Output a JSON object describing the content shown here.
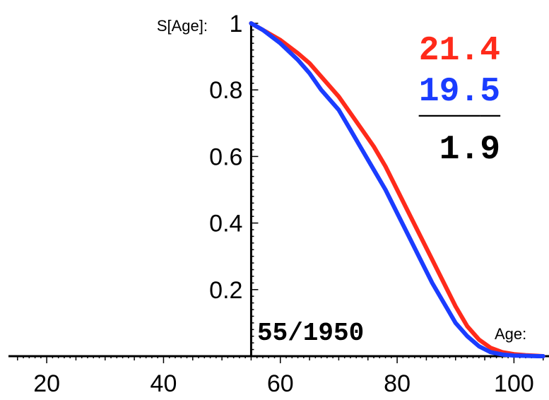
{
  "chart_data": {
    "type": "line",
    "xlabel": "Age:",
    "ylabel": "S[Age]:",
    "xlim": [
      12,
      106
    ],
    "ylim": [
      0,
      1
    ],
    "x_ticks": [
      20,
      40,
      60,
      80,
      100
    ],
    "y_ticks": [
      0.2,
      0.4,
      0.6,
      0.8,
      1
    ],
    "y_tick_labels": [
      "0.2",
      "0.4",
      "0.6",
      "0.8",
      "1"
    ],
    "cohort_label": "55/1950",
    "series": [
      {
        "color": "#ff2a1a",
        "x": [
          55,
          57,
          60,
          63,
          65,
          67,
          70,
          72,
          74,
          76,
          78,
          80,
          82,
          84,
          86,
          88,
          90,
          92,
          94,
          96,
          98,
          100,
          102,
          104,
          105
        ],
        "y": [
          1.0,
          0.98,
          0.95,
          0.91,
          0.88,
          0.84,
          0.78,
          0.73,
          0.68,
          0.63,
          0.57,
          0.5,
          0.43,
          0.36,
          0.29,
          0.22,
          0.15,
          0.09,
          0.05,
          0.025,
          0.012,
          0.006,
          0.003,
          0.001,
          0.0
        ]
      },
      {
        "color": "#1a3cff",
        "x": [
          55,
          57,
          60,
          63,
          65,
          67,
          70,
          72,
          74,
          76,
          78,
          80,
          82,
          84,
          86,
          88,
          90,
          92,
          94,
          96,
          98,
          100,
          102,
          104,
          105
        ],
        "y": [
          1.0,
          0.98,
          0.94,
          0.89,
          0.85,
          0.8,
          0.74,
          0.68,
          0.62,
          0.56,
          0.5,
          0.43,
          0.36,
          0.29,
          0.22,
          0.16,
          0.1,
          0.06,
          0.03,
          0.012,
          0.005,
          0.002,
          0.001,
          0.0,
          0.0
        ]
      }
    ],
    "annotation": {
      "top_value": "21.4",
      "top_color": "#ff2a1a",
      "bottom_value": "19.5",
      "bottom_color": "#1a3cff",
      "separator": "____",
      "difference": "1.9"
    }
  }
}
